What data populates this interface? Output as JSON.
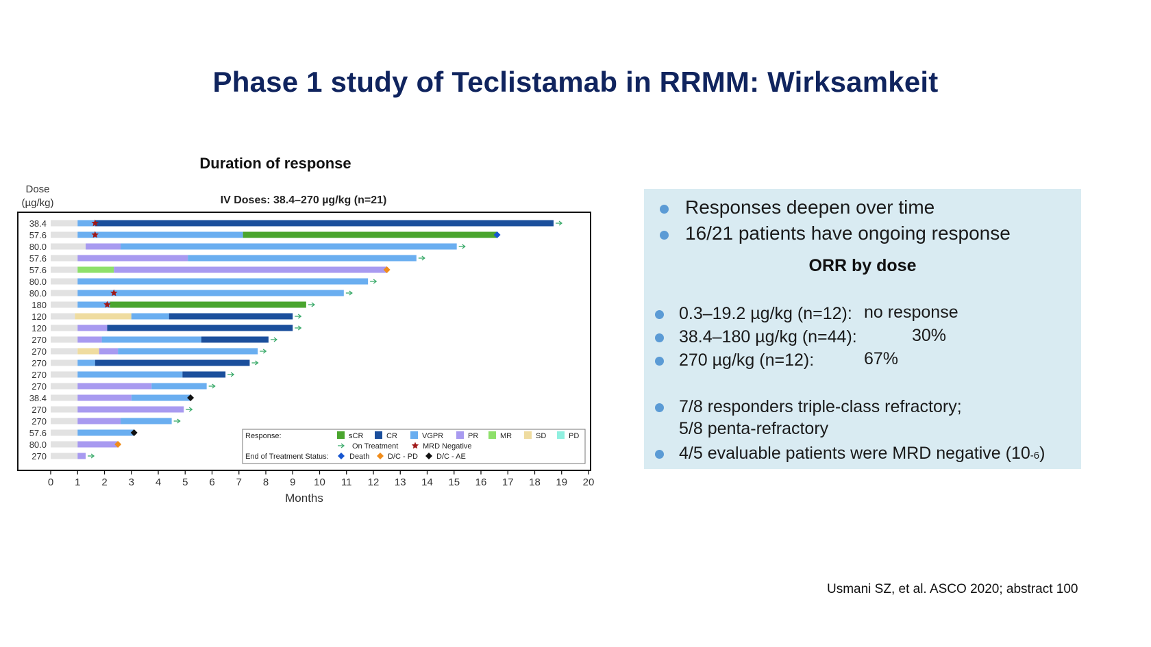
{
  "slide": {
    "title": "Phase 1 study of Teclistamab in RRMM: Wirksamkeit",
    "citation": "Usmani SZ, et al. ASCO 2020; abstract 100"
  },
  "chart_data": {
    "type": "bar",
    "orientation": "horizontal swimmer plot",
    "title": "Duration of response",
    "subtitle": "IV Doses: 38.4–270 µg/kg (n=21)",
    "ylabel_line1": "Dose",
    "ylabel_line2": "(µg/kg)",
    "xlabel": "Months",
    "xlim": [
      0,
      20
    ],
    "xticks": [
      0,
      1,
      2,
      3,
      4,
      5,
      6,
      7,
      8,
      9,
      10,
      11,
      12,
      13,
      14,
      15,
      16,
      17,
      18,
      19,
      20
    ],
    "grid": false,
    "legend_placement": "bottom-right",
    "colors": {
      "baseline": "#e2e2e2",
      "sCR": "#4aa52e",
      "CR": "#1b4f9c",
      "VGPR": "#6aaef0",
      "PR": "#a89af0",
      "MR": "#8ee06a",
      "SD": "#efdca0",
      "PD": "#90f0e0",
      "arrow": "#3aaa6a",
      "mrd": "#a01818",
      "death": "#1756d0",
      "dcpd": "#f08c1a",
      "dcae": "#111111"
    },
    "legend": {
      "response_label": "Response:",
      "status_label": "End of Treatment Status:",
      "categories": [
        "sCR",
        "CR",
        "VGPR",
        "PR",
        "MR",
        "SD",
        "PD"
      ],
      "on_treatment": "On Treatment",
      "mrd_negative": "MRD Negative",
      "death": "Death",
      "dc_pd": "D/C - PD",
      "dc_ae": "D/C - AE"
    },
    "patients": [
      {
        "dose": "38.4",
        "segments": [
          [
            "baseline",
            0,
            1
          ],
          [
            "VGPR",
            1,
            1.65
          ],
          [
            "CR",
            1.65,
            18.7
          ]
        ],
        "end": "arrow",
        "mrd": 1.65
      },
      {
        "dose": "57.6",
        "segments": [
          [
            "baseline",
            0,
            1
          ],
          [
            "VGPR",
            1,
            7.15
          ],
          [
            "sCR",
            7.15,
            16.6
          ]
        ],
        "end": "death",
        "mrd": 1.65
      },
      {
        "dose": "80.0",
        "segments": [
          [
            "baseline",
            0,
            1.3
          ],
          [
            "PR",
            1.3,
            2.6
          ],
          [
            "VGPR",
            2.6,
            15.1
          ]
        ],
        "end": "arrow"
      },
      {
        "dose": "57.6",
        "segments": [
          [
            "baseline",
            0,
            1
          ],
          [
            "PR",
            1,
            5.1
          ],
          [
            "VGPR",
            5.1,
            13.6
          ]
        ],
        "end": "arrow"
      },
      {
        "dose": "57.6",
        "segments": [
          [
            "baseline",
            0,
            1
          ],
          [
            "MR",
            1,
            2.35
          ],
          [
            "PR",
            2.35,
            12.5
          ]
        ],
        "end": "dcpd"
      },
      {
        "dose": "80.0",
        "segments": [
          [
            "baseline",
            0,
            1
          ],
          [
            "VGPR",
            1,
            11.8
          ]
        ],
        "end": "arrow"
      },
      {
        "dose": "80.0",
        "segments": [
          [
            "baseline",
            0,
            1
          ],
          [
            "VGPR",
            1,
            10.9
          ]
        ],
        "end": "arrow",
        "mrd": 2.35
      },
      {
        "dose": "180",
        "segments": [
          [
            "baseline",
            0,
            1
          ],
          [
            "VGPR",
            1,
            2.2
          ],
          [
            "sCR",
            2.2,
            9.5
          ]
        ],
        "end": "arrow",
        "mrd": 2.1
      },
      {
        "dose": "120",
        "segments": [
          [
            "baseline",
            0,
            0.9
          ],
          [
            "SD",
            0.9,
            3
          ],
          [
            "VGPR",
            3,
            4.4
          ],
          [
            "CR",
            4.4,
            9
          ]
        ],
        "end": "arrow"
      },
      {
        "dose": "120",
        "segments": [
          [
            "baseline",
            0,
            1
          ],
          [
            "PR",
            1,
            2.1
          ],
          [
            "CR",
            2.1,
            9
          ]
        ],
        "end": "arrow"
      },
      {
        "dose": "270",
        "segments": [
          [
            "baseline",
            0,
            1
          ],
          [
            "PR",
            1,
            1.9
          ],
          [
            "VGPR",
            1.9,
            5.6
          ],
          [
            "CR",
            5.6,
            8.1
          ]
        ],
        "end": "arrow"
      },
      {
        "dose": "270",
        "segments": [
          [
            "baseline",
            0,
            1
          ],
          [
            "SD",
            1,
            1.8
          ],
          [
            "PR",
            1.8,
            2.5
          ],
          [
            "VGPR",
            2.5,
            7.7
          ]
        ],
        "end": "arrow"
      },
      {
        "dose": "270",
        "segments": [
          [
            "baseline",
            0,
            1
          ],
          [
            "VGPR",
            1,
            1.65
          ],
          [
            "CR",
            1.65,
            7.4
          ]
        ],
        "end": "arrow"
      },
      {
        "dose": "270",
        "segments": [
          [
            "baseline",
            0,
            1
          ],
          [
            "VGPR",
            1,
            4.9
          ],
          [
            "CR",
            4.9,
            6.5
          ]
        ],
        "end": "arrow"
      },
      {
        "dose": "270",
        "segments": [
          [
            "baseline",
            0,
            1
          ],
          [
            "PR",
            1,
            3.75
          ],
          [
            "VGPR",
            3.75,
            5.8
          ]
        ],
        "end": "arrow"
      },
      {
        "dose": "38.4",
        "segments": [
          [
            "baseline",
            0,
            1
          ],
          [
            "PR",
            1,
            3
          ],
          [
            "VGPR",
            3,
            5.2
          ]
        ],
        "end": "dcae"
      },
      {
        "dose": "270",
        "segments": [
          [
            "baseline",
            0,
            1
          ],
          [
            "PR",
            1,
            4.95
          ]
        ],
        "end": "arrow"
      },
      {
        "dose": "270",
        "segments": [
          [
            "baseline",
            0,
            1
          ],
          [
            "PR",
            1,
            2.6
          ],
          [
            "VGPR",
            2.6,
            4.5
          ]
        ],
        "end": "arrow"
      },
      {
        "dose": "57.6",
        "segments": [
          [
            "baseline",
            0,
            1
          ],
          [
            "VGPR",
            1,
            3.1
          ]
        ],
        "end": "dcae"
      },
      {
        "dose": "80.0",
        "segments": [
          [
            "baseline",
            0,
            1
          ],
          [
            "PR",
            1,
            2.5
          ]
        ],
        "end": "dcpd"
      },
      {
        "dose": "270",
        "segments": [
          [
            "baseline",
            0,
            1
          ],
          [
            "PR",
            1,
            1.3
          ]
        ],
        "end": "arrow"
      }
    ]
  },
  "info_panel": {
    "bullets_top": [
      "Responses deepen over time",
      "16/21 patients have ongoing response"
    ],
    "orr_heading": "ORR by dose",
    "orr_rows": [
      {
        "label": "0.3–19.2 µg/kg (n=12):",
        "value": "no response"
      },
      {
        "label": "38.4–180 µg/kg (n=44):",
        "value": "30%"
      },
      {
        "label": "270 µg/kg (n=12):",
        "value": "67%"
      }
    ],
    "bullet_triple_line1": "7/8 responders triple-class refractory;",
    "bullet_triple_line2": "5/8 penta-refractory",
    "bullet_mrd_text": "4/5 evaluable patients were MRD negative (10",
    "bullet_mrd_exp": "-6",
    "bullet_mrd_close": ")"
  }
}
